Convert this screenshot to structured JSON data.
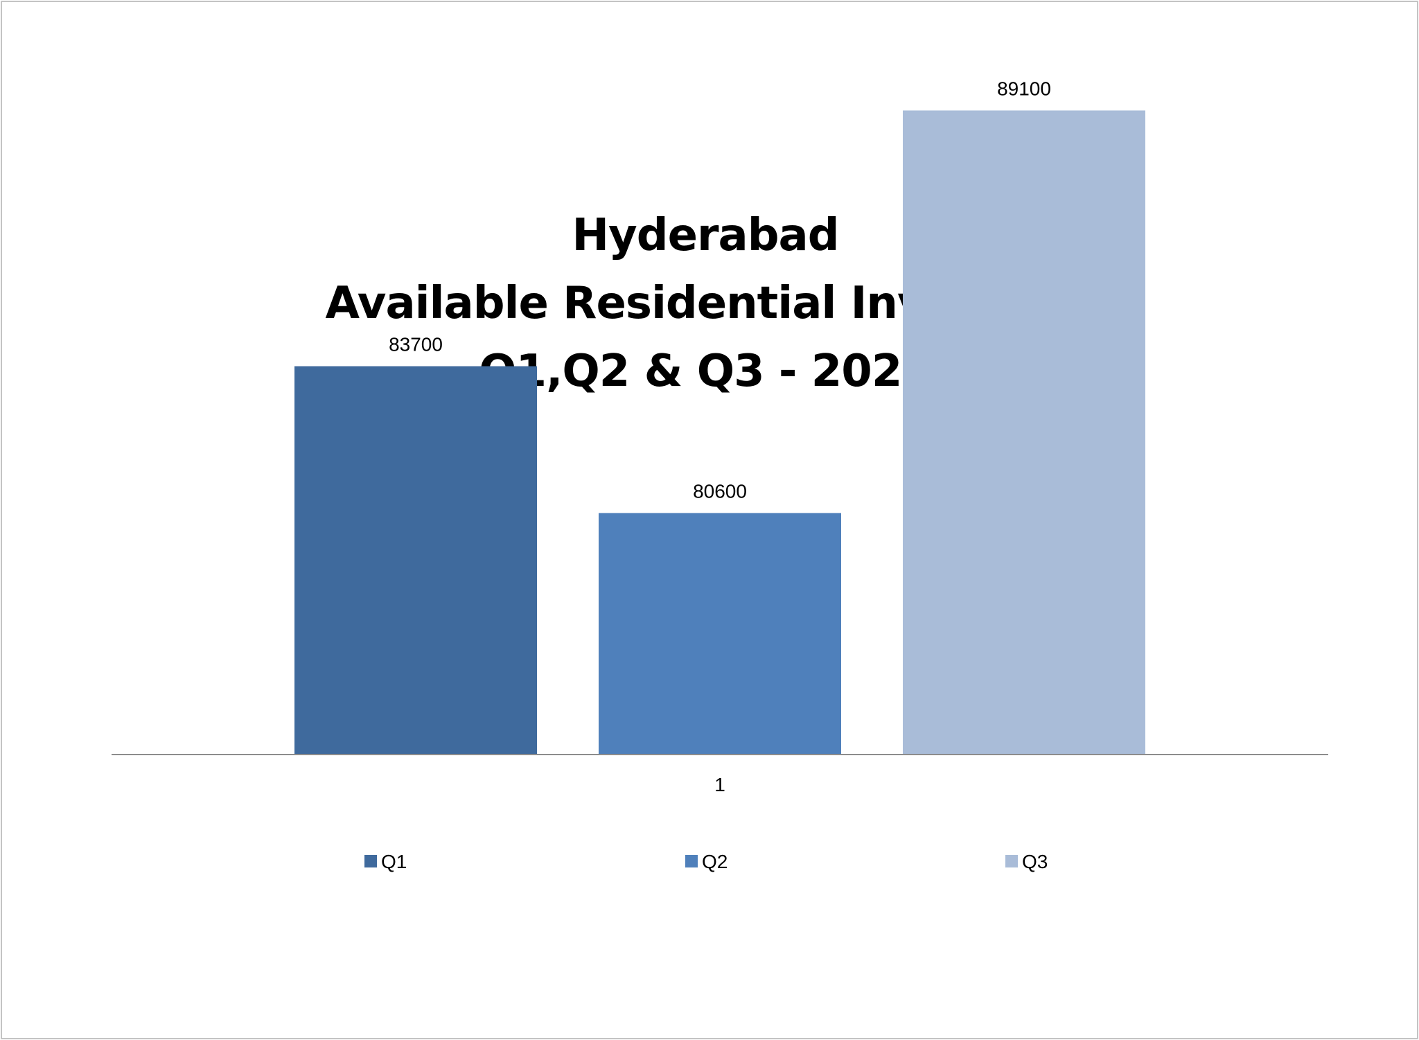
{
  "chart_data": {
    "type": "bar",
    "title": [
      "Hyderabad",
      "Available Residential Inventory",
      "Q1,Q2 & Q3 - 2023"
    ],
    "categories": [
      "1"
    ],
    "series": [
      {
        "name": "Q1",
        "values": [
          83700
        ],
        "color": "#3f6a9d"
      },
      {
        "name": "Q2",
        "values": [
          80600
        ],
        "color": "#4f80bb"
      },
      {
        "name": "Q3",
        "values": [
          89100
        ],
        "color": "#a9bcd8"
      }
    ],
    "ylim": [
      75500,
      91000
    ],
    "grid": false,
    "legend_position": "bottom",
    "xlabel": "",
    "ylabel": ""
  }
}
